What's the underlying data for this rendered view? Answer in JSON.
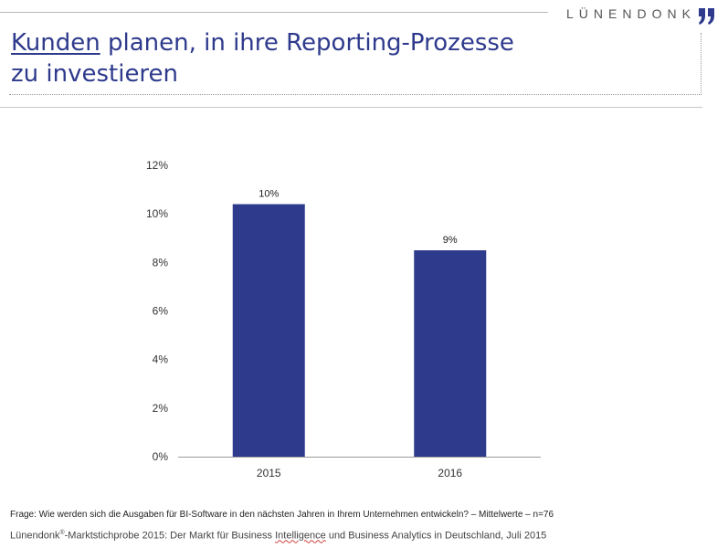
{
  "brand": {
    "name": "LÜNENDONK",
    "quote_color": "#2e3a8c"
  },
  "header": {
    "title_keyword": "Kunden",
    "title_line1_rest": " planen, in ihre Reporting-Prozesse",
    "title_line2": "zu investieren",
    "title_color": "#2e3a8c"
  },
  "chart_data": {
    "type": "bar",
    "title": "",
    "xlabel": "",
    "ylabel": "",
    "categories": [
      "2015",
      "2016"
    ],
    "values": [
      10.4,
      8.5
    ],
    "data_labels": [
      "10%",
      "9%"
    ],
    "ylim": [
      0,
      12
    ],
    "y_ticks": [
      0,
      2,
      4,
      6,
      8,
      10,
      12
    ],
    "y_tick_labels": [
      "0%",
      "2%",
      "4%",
      "6%",
      "8%",
      "10%",
      "12%"
    ],
    "grid": false,
    "legend": "none",
    "bar_color": "#2e3a8c"
  },
  "footer": {
    "question": "Frage: Wie werden sich die Ausgaben für BI-Software  in den nächsten Jahren in Ihrem Unternehmen  entwickeln?  – Mittelwerte – n=76",
    "source_prefix": "Lünendonk",
    "source_reg": "®",
    "source_part1": "-Marktstichprobe 2015: Der Markt für Business ",
    "source_flagged_word": "Intelligence",
    "source_part2": " und Business Analytics in Deutschland, Juli 2015"
  }
}
